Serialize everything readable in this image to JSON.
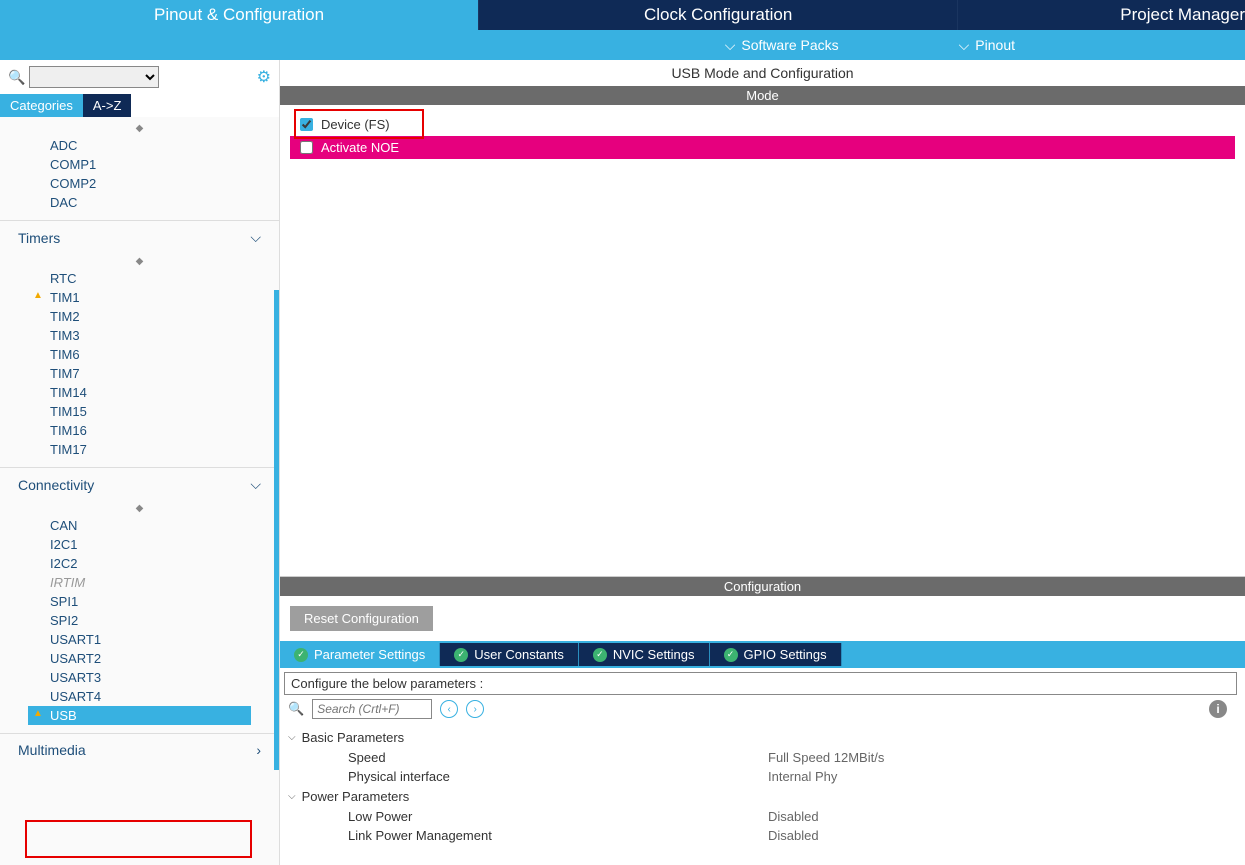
{
  "top_tabs": {
    "pinout": "Pinout & Configuration",
    "clock": "Clock Configuration",
    "project": "Project Manager"
  },
  "sub_bar": {
    "software_packs": "Software Packs",
    "pinout": "Pinout"
  },
  "sidebar": {
    "view_categories": "Categories",
    "view_az": "A->Z",
    "analog_items": [
      "ADC",
      "COMP1",
      "COMP2",
      "DAC"
    ],
    "timers_label": "Timers",
    "timers_items": [
      "RTC",
      "TIM1",
      "TIM2",
      "TIM3",
      "TIM6",
      "TIM7",
      "TIM14",
      "TIM15",
      "TIM16",
      "TIM17"
    ],
    "connectivity_label": "Connectivity",
    "connectivity_items": [
      "CAN",
      "I2C1",
      "I2C2",
      "IRTIM",
      "SPI1",
      "SPI2",
      "USART1",
      "USART2",
      "USART3",
      "USART4",
      "USB"
    ],
    "multimedia_label": "Multimedia"
  },
  "content": {
    "title": "USB Mode and Configuration",
    "mode_header": "Mode",
    "device_fs": "Device (FS)",
    "activate_noe": "Activate NOE",
    "config_header": "Configuration",
    "reset_btn": "Reset Configuration",
    "tabs": {
      "param": "Parameter Settings",
      "user": "User Constants",
      "nvic": "NVIC Settings",
      "gpio": "GPIO Settings"
    },
    "instr": "Configure the below parameters :",
    "search_placeholder": "Search (Crtl+F)",
    "params": {
      "basic_label": "Basic Parameters",
      "speed_label": "Speed",
      "speed_val": "Full Speed 12MBit/s",
      "phy_label": "Physical interface",
      "phy_val": "Internal Phy",
      "power_label": "Power Parameters",
      "lowpower_label": "Low Power",
      "lowpower_val": "Disabled",
      "lpm_label": "Link Power Management",
      "lpm_val": "Disabled"
    }
  }
}
